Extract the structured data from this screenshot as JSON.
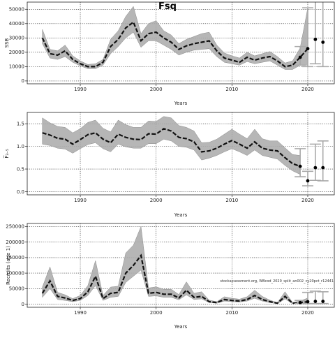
{
  "figure_title": "Fsq",
  "chart_data": [
    {
      "id": "ssb",
      "type": "line",
      "title": "",
      "ylabel": "SSB",
      "xlabel": "Years",
      "xlim": [
        1983,
        2023.5
      ],
      "ylim": [
        -2000,
        55000
      ],
      "xticks": [
        1990,
        2000,
        2010,
        2020
      ],
      "yticks": [
        0,
        10000,
        20000,
        30000,
        40000,
        50000
      ],
      "x": [
        1985,
        1986,
        1987,
        1988,
        1989,
        1990,
        1991,
        1992,
        1993,
        1994,
        1995,
        1996,
        1997,
        1998,
        1999,
        2000,
        2001,
        2002,
        2003,
        2004,
        2005,
        2006,
        2007,
        2008,
        2009,
        2010,
        2011,
        2012,
        2013,
        2014,
        2015,
        2016,
        2017,
        2018,
        2019,
        2020
      ],
      "series": [
        {
          "values": [
            30000,
            19000,
            18000,
            21000,
            15000,
            12000,
            10000,
            10000,
            13000,
            24000,
            29000,
            37000,
            41000,
            28000,
            33000,
            34000,
            30000,
            27000,
            22000,
            24500,
            26000,
            27000,
            28000,
            21000,
            16000,
            14500,
            13000,
            16500,
            14500,
            16000,
            17000,
            14000,
            10000,
            11000,
            16500,
            22500
          ]
        }
      ],
      "band_lower": [
        26000,
        16000,
        15000,
        17000,
        13000,
        10500,
        8500,
        8500,
        11000,
        19000,
        24000,
        30000,
        34000,
        23500,
        28000,
        28000,
        25000,
        22000,
        18000,
        20000,
        21500,
        22000,
        22500,
        17000,
        13000,
        12000,
        11000,
        13500,
        12000,
        13000,
        14000,
        11000,
        8000,
        8000,
        11000,
        11000
      ],
      "band_upper": [
        36000,
        22000,
        21000,
        25000,
        17500,
        14000,
        11500,
        12000,
        15000,
        29000,
        35000,
        45000,
        52000,
        33000,
        40000,
        42000,
        35000,
        32000,
        26000,
        29000,
        31000,
        33000,
        34000,
        25000,
        19500,
        17500,
        16000,
        20000,
        17500,
        19000,
        20500,
        17000,
        12500,
        14000,
        23000,
        51000
      ],
      "points": [
        {
          "x": 2019,
          "y": 16500,
          "lo": 11000,
          "hi": 24000
        },
        {
          "x": 2020,
          "y": 22500,
          "lo": 10000,
          "hi": 51000
        },
        {
          "x": 2021,
          "y": 29000,
          "lo": 12000,
          "hi": 59000
        },
        {
          "x": 2022,
          "y": 27000,
          "lo": 10000,
          "hi": 60000
        }
      ]
    },
    {
      "id": "fbar",
      "type": "line",
      "title": "",
      "ylabel": "F̅₃₋₅",
      "xlabel": "Years",
      "xlim": [
        1983,
        2023.5
      ],
      "ylim": [
        -0.07,
        1.75
      ],
      "xticks": [
        1990,
        2000,
        2010,
        2020
      ],
      "yticks": [
        0.0,
        0.5,
        1.0,
        1.5
      ],
      "ytick_labels": [
        "0.0",
        "0.5",
        "1.0",
        "1.5"
      ],
      "x": [
        1985,
        1986,
        1987,
        1988,
        1989,
        1990,
        1991,
        1992,
        1993,
        1994,
        1995,
        1996,
        1997,
        1998,
        1999,
        2000,
        2001,
        2002,
        2003,
        2004,
        2005,
        2006,
        2007,
        2008,
        2009,
        2010,
        2011,
        2012,
        2013,
        2014,
        2015,
        2016,
        2017,
        2018,
        2019
      ],
      "series": [
        {
          "values": [
            1.3,
            1.25,
            1.18,
            1.16,
            1.05,
            1.15,
            1.26,
            1.3,
            1.16,
            1.08,
            1.27,
            1.2,
            1.16,
            1.15,
            1.28,
            1.27,
            1.39,
            1.34,
            1.2,
            1.17,
            1.1,
            0.88,
            0.9,
            0.96,
            1.05,
            1.13,
            1.05,
            0.96,
            1.1,
            0.96,
            0.92,
            0.9,
            0.75,
            0.62,
            0.56
          ]
        }
      ],
      "band_lower": [
        1.05,
        1.02,
        0.96,
        0.94,
        0.85,
        0.95,
        1.04,
        1.08,
        0.95,
        0.88,
        1.05,
        0.99,
        0.96,
        0.96,
        1.06,
        1.06,
        1.16,
        1.12,
        1.0,
        0.98,
        0.92,
        0.7,
        0.74,
        0.8,
        0.88,
        0.95,
        0.88,
        0.8,
        0.92,
        0.8,
        0.76,
        0.72,
        0.58,
        0.46,
        0.38
      ],
      "band_upper": [
        1.63,
        1.52,
        1.44,
        1.42,
        1.3,
        1.39,
        1.53,
        1.58,
        1.4,
        1.32,
        1.58,
        1.48,
        1.42,
        1.42,
        1.56,
        1.55,
        1.66,
        1.63,
        1.46,
        1.42,
        1.34,
        1.08,
        1.09,
        1.16,
        1.27,
        1.38,
        1.27,
        1.17,
        1.38,
        1.17,
        1.12,
        1.12,
        0.97,
        0.82,
        0.8
      ],
      "points": [
        {
          "x": 2019,
          "y": 0.56,
          "lo": 0.33,
          "hi": 0.95
        },
        {
          "x": 2020,
          "y": 0.24,
          "lo": 0.13,
          "hi": 0.45
        },
        {
          "x": 2021,
          "y": 0.53,
          "lo": 0.25,
          "hi": 1.05
        },
        {
          "x": 2022,
          "y": 0.53,
          "lo": 0.24,
          "hi": 1.12
        }
      ]
    },
    {
      "id": "recruits",
      "type": "line",
      "title": "",
      "ylabel": "Recruits (age 1)",
      "xlabel": "Years",
      "xlim": [
        1983,
        2023.5
      ],
      "ylim": [
        -10000,
        260000
      ],
      "xticks": [
        1990,
        2000,
        2010,
        2020
      ],
      "yticks": [
        0,
        50000,
        100000,
        150000,
        200000,
        250000
      ],
      "x": [
        1985,
        1986,
        1987,
        1988,
        1989,
        1990,
        1991,
        1992,
        1993,
        1994,
        1995,
        1996,
        1997,
        1998,
        1999,
        2000,
        2001,
        2002,
        2003,
        2004,
        2005,
        2006,
        2007,
        2008,
        2009,
        2010,
        2011,
        2012,
        2013,
        2014,
        2015,
        2016,
        2017,
        2018,
        2019,
        2020
      ],
      "series": [
        {
          "values": [
            35000,
            75000,
            25000,
            20000,
            12000,
            18000,
            40000,
            90000,
            18000,
            35000,
            38000,
            100000,
            125000,
            157000,
            35000,
            38000,
            32000,
            32000,
            20000,
            45000,
            22000,
            25000,
            8000,
            5000,
            15000,
            12000,
            10000,
            15000,
            28000,
            15000,
            8000,
            3000,
            25000,
            3000,
            5000,
            8000
          ]
        }
      ],
      "band_lower": [
        22000,
        50000,
        15000,
        12000,
        8000,
        12000,
        28000,
        60000,
        12000,
        22000,
        25000,
        70000,
        90000,
        110000,
        25000,
        27000,
        22000,
        22000,
        14000,
        30000,
        15000,
        17000,
        5000,
        3000,
        10000,
        8000,
        7000,
        10000,
        19000,
        10000,
        5000,
        1500,
        17000,
        1500,
        2000,
        3000
      ],
      "band_upper": [
        55000,
        120000,
        38000,
        30000,
        18000,
        28000,
        60000,
        140000,
        28000,
        55000,
        58000,
        165000,
        190000,
        250000,
        52000,
        56000,
        48000,
        48000,
        31000,
        72000,
        35000,
        40000,
        13000,
        8000,
        24000,
        19000,
        16000,
        24000,
        45000,
        25000,
        13000,
        5000,
        40000,
        5500,
        10000,
        20000
      ],
      "points": [
        {
          "x": 2019,
          "y": 5000,
          "lo": 2000,
          "hi": 12000
        },
        {
          "x": 2020,
          "y": 8000,
          "lo": 2000,
          "hi": 38000
        },
        {
          "x": 2021,
          "y": 9000,
          "lo": 2000,
          "hi": 42000
        },
        {
          "x": 2022,
          "y": 9000,
          "lo": 2000,
          "hi": 40000
        }
      ],
      "annotation": "stockassessment.org, WBcod_2020_split_an002_cy20pct_r12441"
    }
  ]
}
